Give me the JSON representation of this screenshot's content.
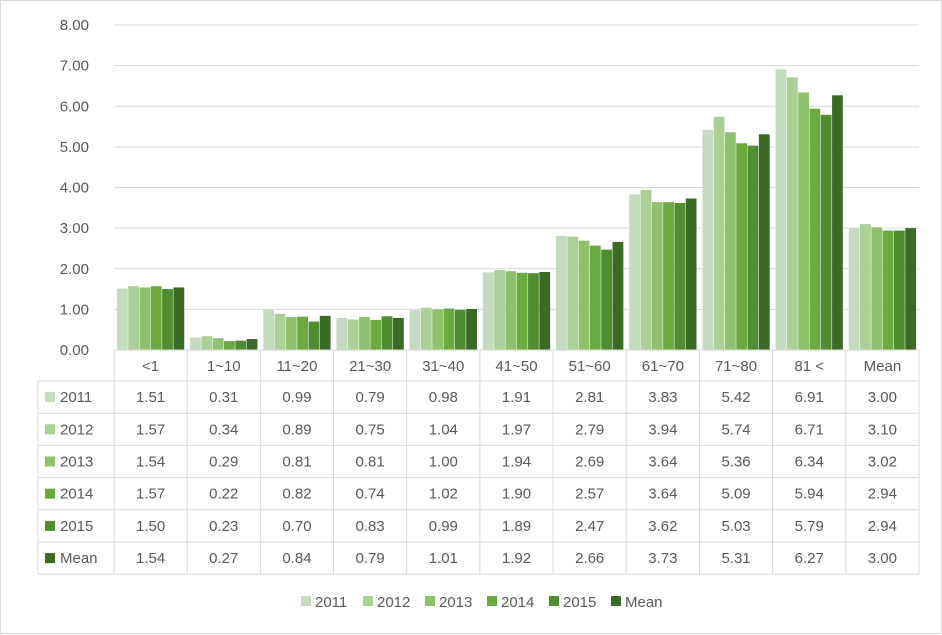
{
  "chart_data": {
    "type": "bar",
    "categories": [
      "<1",
      "1~10",
      "11~20",
      "21~30",
      "31~40",
      "41~50",
      "51~60",
      "61~70",
      "71~80",
      "81<",
      "Mean"
    ],
    "category_labels": [
      "<1",
      "1~10",
      "11~20",
      "21~30",
      "31~40",
      "41~50",
      "51~60",
      "61~70",
      "71~80",
      "81 <",
      "Mean"
    ],
    "series": [
      {
        "name": "2011",
        "color": "#c5dbbf",
        "values": [
          1.51,
          0.31,
          0.99,
          0.79,
          0.98,
          1.91,
          2.81,
          3.83,
          5.42,
          6.91,
          3.0
        ]
      },
      {
        "name": "2012",
        "color": "#a9d095",
        "values": [
          1.57,
          0.34,
          0.89,
          0.75,
          1.04,
          1.97,
          2.79,
          3.94,
          5.74,
          6.71,
          3.1
        ]
      },
      {
        "name": "2013",
        "color": "#8dc16c",
        "values": [
          1.54,
          0.29,
          0.81,
          0.81,
          1.0,
          1.94,
          2.69,
          3.64,
          5.36,
          6.34,
          3.02
        ]
      },
      {
        "name": "2014",
        "color": "#6aaa41",
        "values": [
          1.57,
          0.22,
          0.82,
          0.74,
          1.02,
          1.9,
          2.57,
          3.64,
          5.09,
          5.94,
          2.94
        ]
      },
      {
        "name": "2015",
        "color": "#4f8d31",
        "values": [
          1.5,
          0.23,
          0.7,
          0.83,
          0.99,
          1.89,
          2.47,
          3.62,
          5.03,
          5.79,
          2.94
        ]
      },
      {
        "name": "Mean",
        "color": "#3a6b25",
        "values": [
          1.54,
          0.27,
          0.84,
          0.79,
          1.01,
          1.92,
          2.66,
          3.73,
          5.31,
          6.27,
          3.0
        ]
      }
    ],
    "table_values": [
      [
        "1.51",
        "0.31",
        "0.99",
        "0.79",
        "0.98",
        "1.91",
        "2.81",
        "3.83",
        "5.42",
        "6.91",
        "3.00"
      ],
      [
        "1.57",
        "0.34",
        "0.89",
        "0.75",
        "1.04",
        "1.97",
        "2.79",
        "3.94",
        "5.74",
        "6.71",
        "3.10"
      ],
      [
        "1.54",
        "0.29",
        "0.81",
        "0.81",
        "1.00",
        "1.94",
        "2.69",
        "3.64",
        "5.36",
        "6.34",
        "3.02"
      ],
      [
        "1.57",
        "0.22",
        "0.82",
        "0.74",
        "1.02",
        "1.90",
        "2.57",
        "3.64",
        "5.09",
        "5.94",
        "2.94"
      ],
      [
        "1.50",
        "0.23",
        "0.70",
        "0.83",
        "0.99",
        "1.89",
        "2.47",
        "3.62",
        "5.03",
        "5.79",
        "2.94"
      ],
      [
        "1.54",
        "0.27",
        "0.84",
        "0.79",
        "1.01",
        "1.92",
        "2.66",
        "3.73",
        "5.31",
        "6.27",
        "3.00"
      ]
    ],
    "y_ticks": [
      "0.00",
      "1.00",
      "2.00",
      "3.00",
      "4.00",
      "5.00",
      "6.00",
      "7.00",
      "8.00"
    ],
    "ylim": [
      0,
      8
    ],
    "grid": true,
    "legend_position": "bottom",
    "data_table": true,
    "title": "",
    "xlabel": "",
    "ylabel": ""
  }
}
